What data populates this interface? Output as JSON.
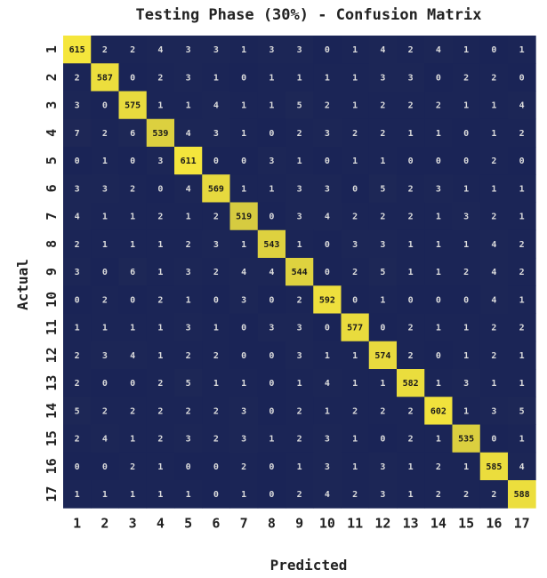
{
  "chart_data": {
    "type": "heatmap",
    "title": "Testing Phase (30%) - Confusion Matrix",
    "xlabel": "Predicted",
    "ylabel": "Actual",
    "x_categories": [
      "1",
      "2",
      "3",
      "4",
      "5",
      "6",
      "7",
      "8",
      "9",
      "10",
      "11",
      "12",
      "13",
      "14",
      "15",
      "16",
      "17"
    ],
    "y_categories": [
      "1",
      "2",
      "3",
      "4",
      "5",
      "6",
      "7",
      "8",
      "9",
      "10",
      "11",
      "12",
      "13",
      "14",
      "15",
      "16",
      "17"
    ],
    "colors": {
      "low": "#1a2456",
      "high": "#f5e63c",
      "low_text": "#dcdcdc",
      "high_text": "#1a1a1a"
    },
    "matrix": [
      [
        615,
        2,
        2,
        4,
        3,
        3,
        1,
        3,
        3,
        0,
        1,
        4,
        2,
        4,
        1,
        0,
        1
      ],
      [
        2,
        587,
        0,
        2,
        3,
        1,
        0,
        1,
        1,
        1,
        1,
        3,
        3,
        0,
        2,
        2,
        0
      ],
      [
        3,
        0,
        575,
        1,
        1,
        4,
        1,
        1,
        5,
        2,
        1,
        2,
        2,
        2,
        1,
        1,
        4
      ],
      [
        7,
        2,
        6,
        539,
        4,
        3,
        1,
        0,
        2,
        3,
        2,
        2,
        1,
        1,
        0,
        1,
        2
      ],
      [
        0,
        1,
        0,
        3,
        611,
        0,
        0,
        3,
        1,
        0,
        1,
        1,
        0,
        0,
        0,
        2,
        0
      ],
      [
        3,
        3,
        2,
        0,
        4,
        569,
        1,
        1,
        3,
        3,
        0,
        5,
        2,
        3,
        1,
        1,
        1
      ],
      [
        4,
        1,
        1,
        2,
        1,
        2,
        519,
        0,
        3,
        4,
        2,
        2,
        2,
        1,
        3,
        2,
        1
      ],
      [
        2,
        1,
        1,
        1,
        2,
        3,
        1,
        543,
        1,
        0,
        3,
        3,
        1,
        1,
        1,
        4,
        2
      ],
      [
        3,
        0,
        6,
        1,
        3,
        2,
        4,
        4,
        544,
        0,
        2,
        5,
        1,
        1,
        2,
        4,
        2
      ],
      [
        0,
        2,
        0,
        2,
        1,
        0,
        3,
        0,
        2,
        592,
        0,
        1,
        0,
        0,
        0,
        4,
        1
      ],
      [
        1,
        1,
        1,
        1,
        3,
        1,
        0,
        3,
        3,
        0,
        577,
        0,
        2,
        1,
        1,
        2,
        2
      ],
      [
        2,
        3,
        4,
        1,
        2,
        2,
        0,
        0,
        3,
        1,
        1,
        574,
        2,
        0,
        1,
        2,
        1
      ],
      [
        2,
        0,
        0,
        2,
        5,
        1,
        1,
        0,
        1,
        4,
        1,
        1,
        582,
        1,
        3,
        1,
        1
      ],
      [
        5,
        2,
        2,
        2,
        2,
        2,
        3,
        0,
        2,
        1,
        2,
        2,
        2,
        602,
        1,
        3,
        5
      ],
      [
        2,
        4,
        1,
        2,
        3,
        2,
        3,
        1,
        2,
        3,
        1,
        0,
        2,
        1,
        535,
        0,
        1
      ],
      [
        0,
        0,
        2,
        1,
        0,
        0,
        2,
        0,
        1,
        3,
        1,
        3,
        1,
        2,
        1,
        585,
        4
      ],
      [
        1,
        1,
        1,
        1,
        1,
        0,
        1,
        0,
        2,
        4,
        2,
        3,
        1,
        2,
        2,
        2,
        588
      ]
    ]
  }
}
